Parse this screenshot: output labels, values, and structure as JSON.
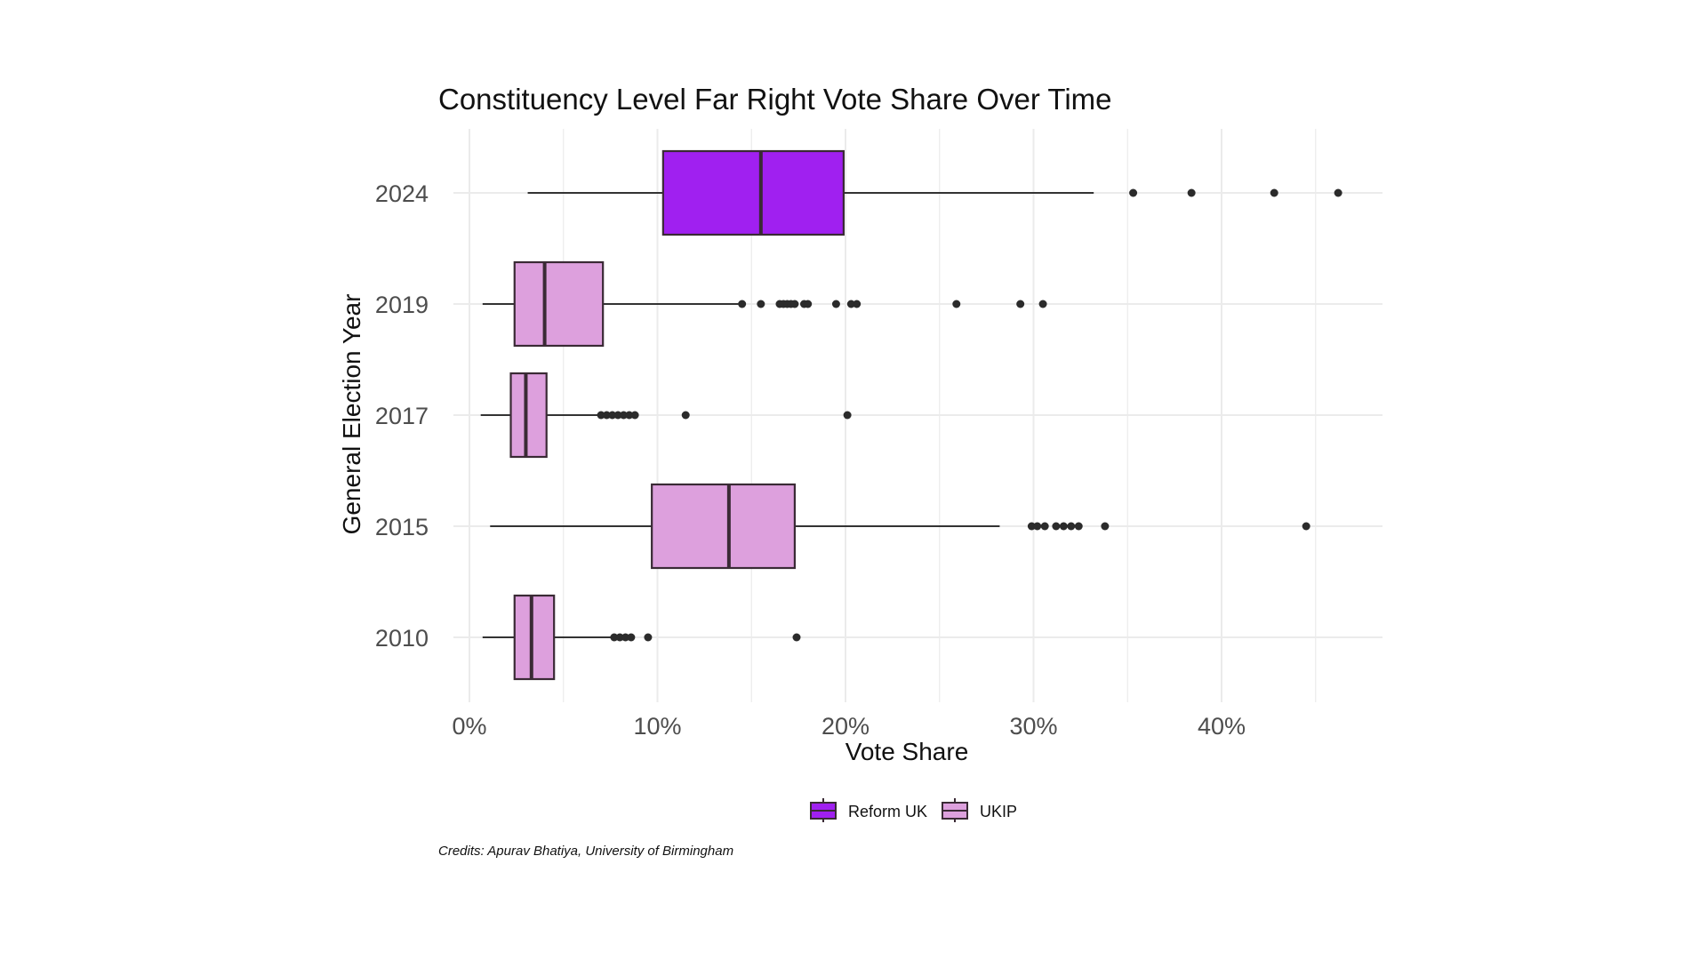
{
  "chart_data": {
    "type": "boxplot",
    "orientation": "horizontal",
    "title": "Constituency Level Far Right Vote Share Over Time",
    "xlabel": "Vote Share",
    "ylabel": "General Election Year",
    "xlim": [
      0,
      48
    ],
    "x_ticks": [
      {
        "value": 0,
        "label": "0%"
      },
      {
        "value": 10,
        "label": "10%"
      },
      {
        "value": 20,
        "label": "20%"
      },
      {
        "value": 30,
        "label": "30%"
      },
      {
        "value": 40,
        "label": "40%"
      }
    ],
    "categories": [
      "2010",
      "2015",
      "2017",
      "2019",
      "2024"
    ],
    "grid": true,
    "legend_position": "bottom",
    "legend": [
      {
        "name": "Reform UK",
        "color": "#a020f0"
      },
      {
        "name": "UKIP",
        "color": "#dda0dd"
      }
    ],
    "boxes": [
      {
        "year": "2024",
        "party": "Reform UK",
        "whisker_low": 3.1,
        "q1": 10.3,
        "median": 15.5,
        "q3": 19.9,
        "whisker_high": 33.2,
        "outliers": [
          35.3,
          38.4,
          42.8,
          46.2
        ]
      },
      {
        "year": "2019",
        "party": "UKIP",
        "whisker_low": 0.7,
        "q1": 2.4,
        "median": 4.0,
        "q3": 7.1,
        "whisker_high": 14.3,
        "outliers": [
          14.5,
          15.5,
          16.5,
          16.7,
          16.9,
          17.1,
          17.3,
          17.8,
          18.0,
          19.5,
          20.3,
          20.6,
          25.9,
          29.3,
          30.5
        ]
      },
      {
        "year": "2017",
        "party": "UKIP",
        "whisker_low": 0.6,
        "q1": 2.2,
        "median": 3.0,
        "q3": 4.1,
        "whisker_high": 6.9,
        "outliers": [
          7.0,
          7.3,
          7.6,
          7.9,
          8.2,
          8.5,
          8.8,
          11.5,
          20.1
        ]
      },
      {
        "year": "2015",
        "party": "UKIP",
        "whisker_low": 1.1,
        "q1": 9.7,
        "median": 13.8,
        "q3": 17.3,
        "whisker_high": 28.2,
        "outliers": [
          29.9,
          30.2,
          30.6,
          31.2,
          31.6,
          32.0,
          32.4,
          33.8,
          44.5
        ]
      },
      {
        "year": "2010",
        "party": "UKIP",
        "whisker_low": 0.7,
        "q1": 2.4,
        "median": 3.3,
        "q3": 4.5,
        "whisker_high": 7.5,
        "outliers": [
          7.7,
          8.0,
          8.3,
          8.6,
          9.5,
          17.4
        ]
      }
    ]
  },
  "colors": {
    "reform_uk": "#a020f0",
    "ukip": "#dda0dd",
    "outline": "#3a2a35",
    "whisker": "#333333",
    "outlier": "#2b2b2b",
    "grid": "#ebebeb",
    "axis_text": "#4d4d4d"
  },
  "credits": "Credits: Apurav Bhatiya, University of Birmingham"
}
